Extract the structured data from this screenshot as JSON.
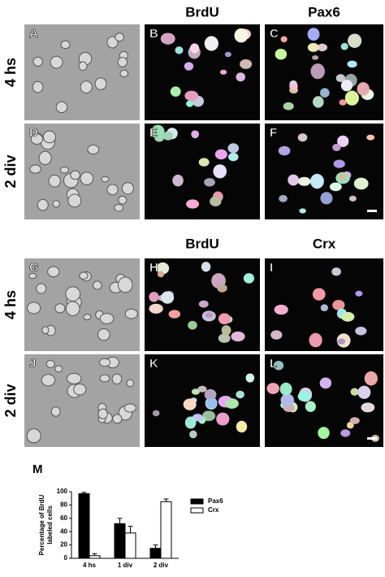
{
  "figure": {
    "top": {
      "columns": [
        "BrdU",
        "Pax6"
      ],
      "rows": [
        "4 hs",
        "2 div"
      ],
      "letters": [
        "A",
        "B",
        "C",
        "D",
        "E",
        "F"
      ]
    },
    "bottom": {
      "columns": [
        "BrdU",
        "Crx"
      ],
      "rows": [
        "4 hs",
        "2 div"
      ],
      "letters": [
        "G",
        "H",
        "I",
        "J",
        "K",
        "L"
      ]
    }
  },
  "chart_data": {
    "type": "bar",
    "panel_letter": "M",
    "ylabel": [
      "Percentage of BrdU",
      "labeled cells"
    ],
    "categories": [
      "4 hs",
      "1 div",
      "2 div"
    ],
    "series": [
      {
        "name": "Pax6",
        "color": "#000000",
        "values": [
          97,
          52,
          15
        ],
        "errors": [
          2,
          8,
          5
        ]
      },
      {
        "name": "Crx",
        "color": "#ffffff",
        "values": [
          4,
          38,
          85
        ],
        "errors": [
          3,
          10,
          4
        ]
      }
    ],
    "ylim": [
      0,
      100
    ],
    "yticks": [
      0,
      20,
      40,
      60,
      80,
      100
    ]
  }
}
